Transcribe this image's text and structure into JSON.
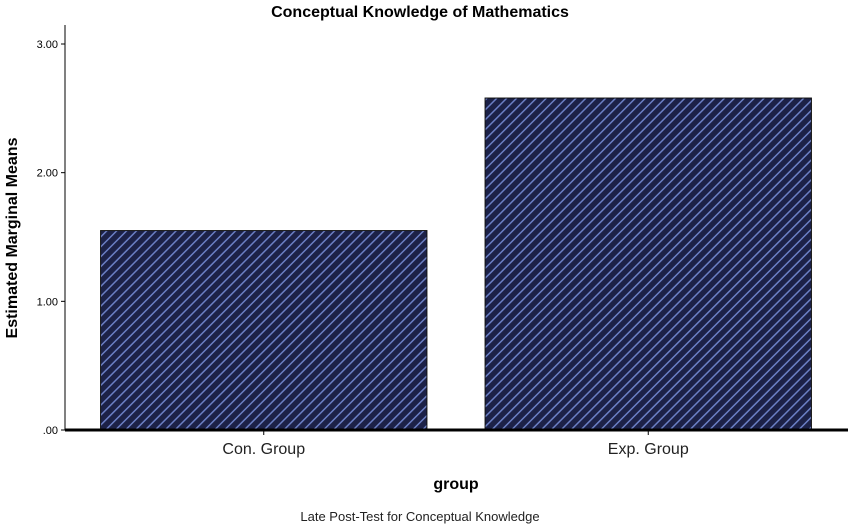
{
  "chart_data": {
    "type": "bar",
    "title": "Conceptual Knowledge of Mathematics",
    "xlabel": "group",
    "ylabel": "Estimated Marginal Means",
    "categories": [
      "Con. Group",
      "Exp. Group"
    ],
    "values": [
      1.55,
      2.58
    ],
    "ylim": [
      0,
      3
    ],
    "yticks": [
      0,
      1,
      2,
      3
    ],
    "ytick_labels": [
      ".00",
      "1.00",
      "2.00",
      "3.00"
    ],
    "footnote": "Late Post-Test for Conceptual Knowledge",
    "grid": false,
    "legend": "none",
    "colors": {
      "bar_fill": "#1c2147",
      "bar_hatch": "#6b7fc4",
      "axis": "#000000"
    }
  }
}
